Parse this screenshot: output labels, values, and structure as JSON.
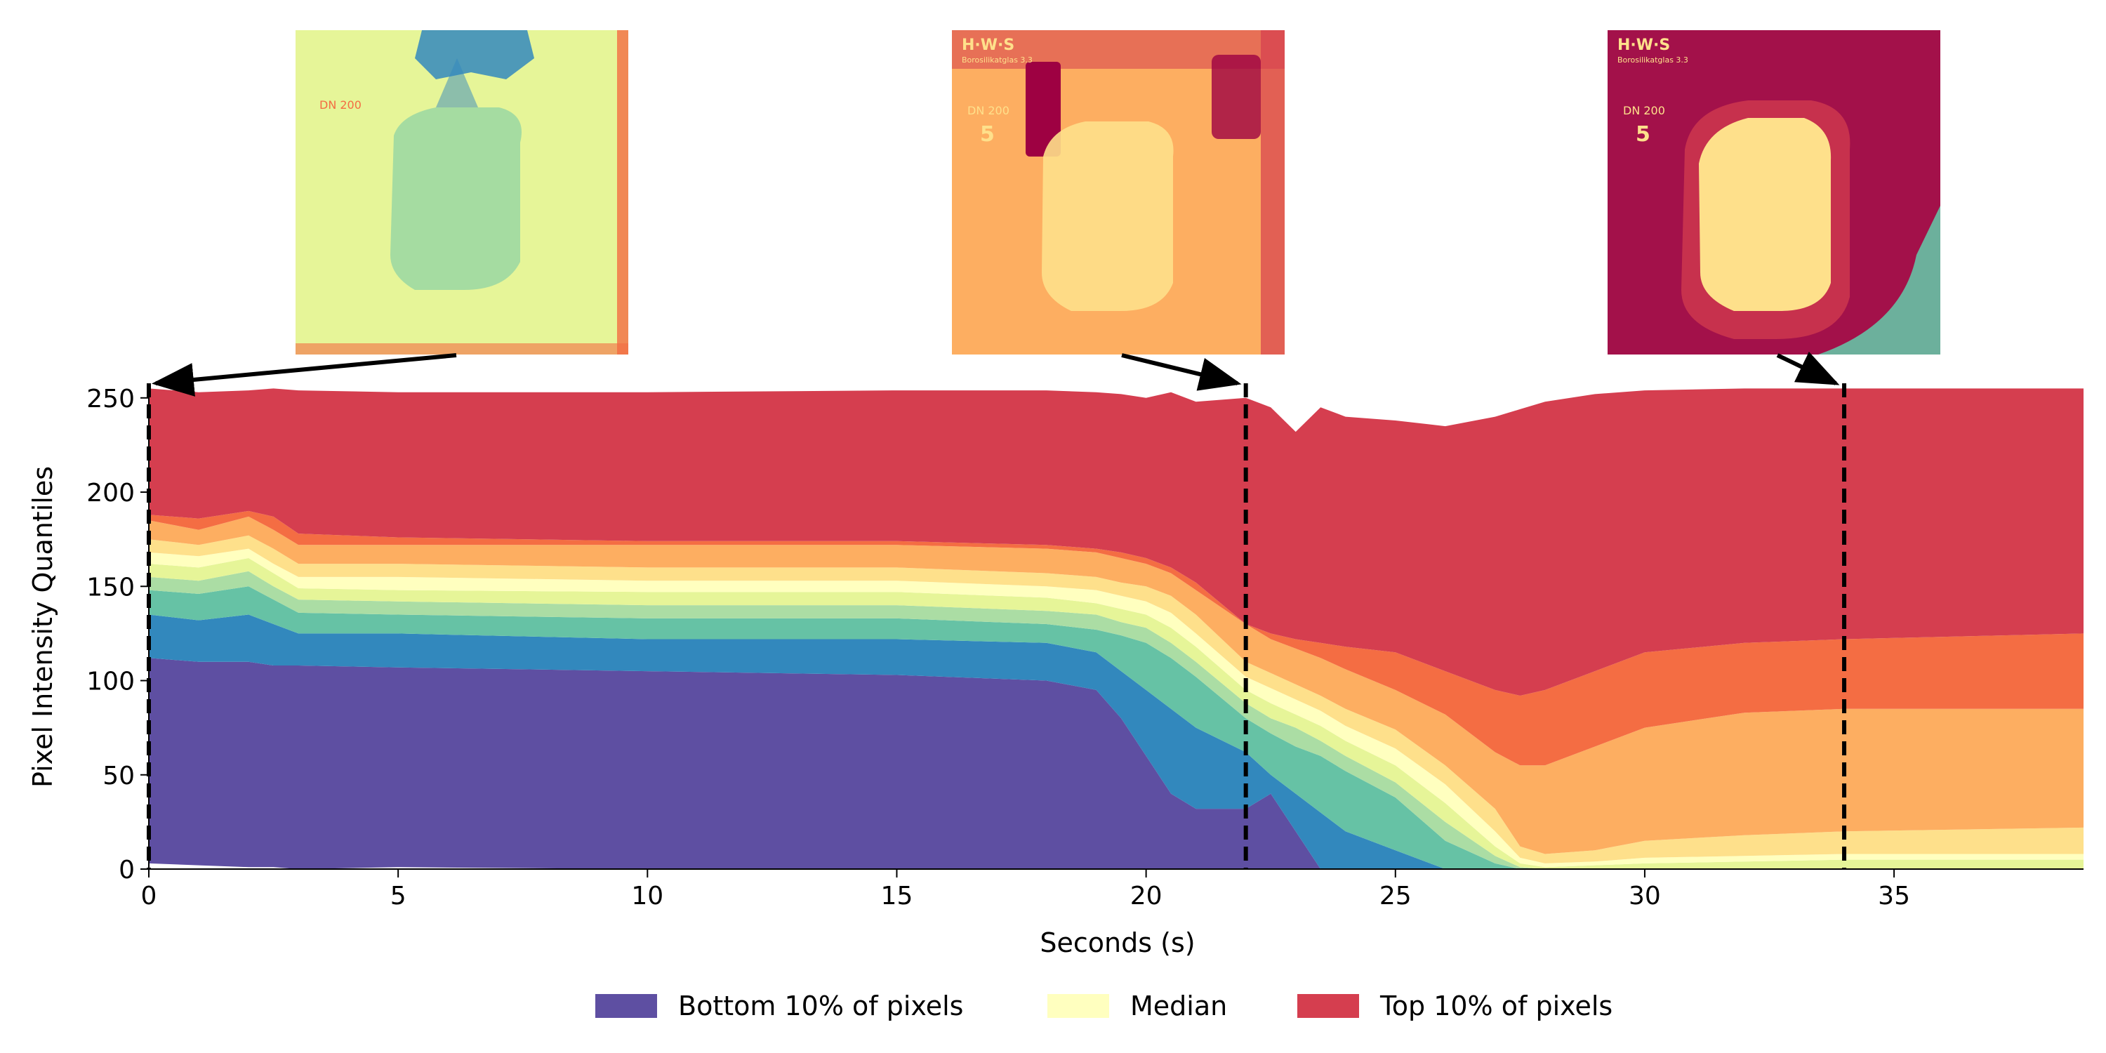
{
  "chart_data": {
    "type": "area",
    "title": "",
    "xlabel": "Seconds (s)",
    "ylabel": "Pixel Intensity Quantiles",
    "xlim": [
      0,
      38.8
    ],
    "ylim": [
      0,
      257
    ],
    "xticks": [
      0,
      5,
      10,
      15,
      20,
      25,
      30,
      35
    ],
    "yticks": [
      0,
      50,
      100,
      150,
      200,
      250
    ],
    "grid": false,
    "legend_position": "bottom-center",
    "legend": [
      {
        "label": "Bottom 10% of pixels",
        "color": "#5e4fa2"
      },
      {
        "label": "Median",
        "color": "#ffffbf"
      },
      {
        "label": "Top 10% of pixels",
        "color": "#d53e4f"
      }
    ],
    "band_colors": [
      "#5e4fa2",
      "#3288bd",
      "#66c2a5",
      "#abdda4",
      "#e6f598",
      "#ffffbf",
      "#fee08b",
      "#fdae61",
      "#f46d43",
      "#d53e4f"
    ],
    "x": [
      0,
      1,
      2,
      2.5,
      3,
      5,
      10,
      15,
      18,
      19,
      19.5,
      20,
      20.5,
      21,
      22,
      22.5,
      23,
      23.5,
      24,
      25,
      26,
      27,
      27.5,
      28,
      29,
      30,
      32,
      34,
      38.8
    ],
    "quantile_boundaries": [
      {
        "name": "q0",
        "values": [
          3,
          2,
          1,
          1,
          0,
          1,
          0,
          0,
          0,
          0,
          0,
          0,
          0,
          0,
          0,
          0,
          0,
          0,
          0,
          0,
          0,
          0,
          0,
          0,
          0,
          0,
          0,
          0,
          0
        ]
      },
      {
        "name": "q10",
        "values": [
          112,
          110,
          110,
          108,
          108,
          107,
          105,
          103,
          100,
          95,
          80,
          60,
          40,
          32,
          32,
          40,
          20,
          0,
          0,
          0,
          0,
          0,
          0,
          0,
          0,
          0,
          0,
          0,
          0
        ]
      },
      {
        "name": "q20",
        "values": [
          135,
          132,
          135,
          130,
          125,
          125,
          122,
          122,
          120,
          115,
          105,
          95,
          85,
          75,
          62,
          50,
          40,
          30,
          20,
          10,
          0,
          0,
          0,
          0,
          0,
          0,
          0,
          0,
          0
        ]
      },
      {
        "name": "q30",
        "values": [
          148,
          146,
          150,
          143,
          136,
          135,
          133,
          133,
          130,
          127,
          124,
          120,
          112,
          102,
          80,
          72,
          65,
          60,
          52,
          38,
          15,
          3,
          0,
          0,
          0,
          0,
          0,
          0,
          0
        ]
      },
      {
        "name": "q40",
        "values": [
          155,
          153,
          158,
          150,
          143,
          142,
          140,
          140,
          137,
          135,
          131,
          128,
          120,
          110,
          88,
          80,
          75,
          68,
          60,
          46,
          25,
          7,
          1,
          0,
          0,
          0,
          0,
          0,
          0
        ]
      },
      {
        "name": "q50",
        "values": [
          162,
          160,
          165,
          157,
          149,
          148,
          147,
          147,
          144,
          141,
          138,
          135,
          128,
          118,
          95,
          88,
          82,
          76,
          68,
          55,
          35,
          12,
          3,
          1,
          2,
          3,
          4,
          5,
          5
        ]
      },
      {
        "name": "q60",
        "values": [
          168,
          166,
          170,
          162,
          155,
          155,
          153,
          153,
          150,
          148,
          145,
          142,
          136,
          125,
          102,
          96,
          90,
          84,
          76,
          64,
          45,
          20,
          6,
          3,
          4,
          6,
          7,
          8,
          8
        ]
      },
      {
        "name": "q70",
        "values": [
          175,
          172,
          177,
          170,
          162,
          162,
          160,
          160,
          157,
          155,
          152,
          150,
          145,
          135,
          110,
          104,
          98,
          92,
          85,
          74,
          55,
          32,
          12,
          8,
          10,
          15,
          18,
          20,
          22
        ]
      },
      {
        "name": "q80",
        "values": [
          185,
          180,
          187,
          180,
          172,
          172,
          172,
          172,
          170,
          168,
          165,
          162,
          157,
          148,
          130,
          122,
          117,
          112,
          106,
          95,
          82,
          62,
          55,
          55,
          65,
          75,
          83,
          85,
          85
        ]
      },
      {
        "name": "q90",
        "values": [
          188,
          186,
          190,
          187,
          178,
          176,
          174,
          174,
          172,
          170,
          168,
          165,
          160,
          152,
          130,
          125,
          122,
          120,
          118,
          115,
          105,
          95,
          92,
          95,
          105,
          115,
          120,
          122,
          125
        ]
      },
      {
        "name": "q100",
        "values": [
          255,
          253,
          254,
          255,
          254,
          253,
          253,
          254,
          254,
          253,
          252,
          250,
          253,
          248,
          250,
          245,
          232,
          245,
          240,
          238,
          235,
          240,
          244,
          248,
          252,
          254,
          255,
          255,
          255
        ]
      }
    ],
    "vertical_markers": [
      0,
      22,
      34
    ]
  },
  "colors": {
    "frame1": {
      "bg": "#e6f598",
      "fg": "#8fd3a4",
      "dark": "#3288bd",
      "edge": "#f46d43"
    },
    "frame2": {
      "bg": "#fdae61",
      "fg": "#fee08b",
      "dark": "#9e0142",
      "edge": "#d53e4f"
    },
    "frame3": {
      "bg": "#a3114a",
      "fg": "#fee08b",
      "dark": "#d53e4f",
      "edge": "#66c2a5"
    }
  },
  "frame_labels": {
    "frame1": {
      "size": "DN 200"
    },
    "frame2": {
      "brand": "H·W·S",
      "glass": "Borosilikatglas 3.3",
      "size": "DN 200",
      "number": "5"
    },
    "frame3": {
      "brand": "H·W·S",
      "glass": "Borosilikatglas 3.3",
      "size": "DN 200",
      "number": "5"
    }
  }
}
